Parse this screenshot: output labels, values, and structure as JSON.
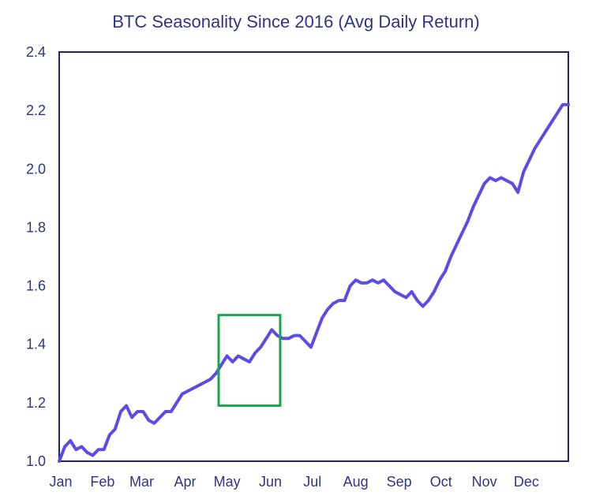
{
  "colors": {
    "line": "#5b4ce6",
    "text": "#2f3585",
    "axis": "#1f2460",
    "highlight": "#1aa64a"
  },
  "chart_data": {
    "type": "line",
    "title": "BTC Seasonality Since 2016 (Avg Daily Return)",
    "xlabel": "",
    "ylabel": "",
    "ylim": [
      1.0,
      2.4
    ],
    "yticks": [
      "1.0",
      "1.2",
      "1.4",
      "1.6",
      "1.8",
      "2.0",
      "2.2",
      "2.4"
    ],
    "xticks": [
      "Jan",
      "Feb",
      "Mar",
      "Apr",
      "May",
      "Jun",
      "Jul",
      "Aug",
      "Sep",
      "Oct",
      "Nov",
      "Dec"
    ],
    "grid": false,
    "legend": "none",
    "highlight": {
      "x_range": [
        "Apr 25",
        "Jun 8"
      ],
      "y_range": [
        1.19,
        1.5
      ]
    },
    "series": [
      {
        "x": [
          "Jan 1",
          "Jan 5",
          "Jan 9",
          "Jan 13",
          "Jan 17",
          "Jan 21",
          "Jan 25",
          "Jan 29",
          "Feb 2",
          "Feb 6",
          "Feb 10",
          "Feb 14",
          "Feb 18",
          "Feb 22",
          "Feb 26",
          "Mar 2",
          "Mar 6",
          "Mar 10",
          "Mar 14",
          "Mar 18",
          "Mar 22",
          "Mar 26",
          "Mar 30",
          "Apr 3",
          "Apr 7",
          "Apr 11",
          "Apr 15",
          "Apr 19",
          "Apr 23",
          "Apr 27",
          "May 1",
          "May 5",
          "May 9",
          "May 13",
          "May 17",
          "May 21",
          "May 25",
          "May 29",
          "Jun 2",
          "Jun 6",
          "Jun 10",
          "Jun 14",
          "Jun 18",
          "Jun 22",
          "Jun 26",
          "Jun 30",
          "Jul 4",
          "Jul 8",
          "Jul 12",
          "Jul 16",
          "Jul 20",
          "Jul 24",
          "Jul 28",
          "Aug 1",
          "Aug 5",
          "Aug 9",
          "Aug 13",
          "Aug 17",
          "Aug 21",
          "Aug 25",
          "Aug 29",
          "Sep 2",
          "Sep 6",
          "Sep 10",
          "Sep 14",
          "Sep 18",
          "Sep 22",
          "Sep 26",
          "Sep 30",
          "Oct 4",
          "Oct 8",
          "Oct 12",
          "Oct 16",
          "Oct 20",
          "Oct 24",
          "Oct 28",
          "Nov 1",
          "Nov 5",
          "Nov 9",
          "Nov 13",
          "Nov 17",
          "Nov 21",
          "Nov 25",
          "Nov 29",
          "Dec 3",
          "Dec 7",
          "Dec 11",
          "Dec 15",
          "Dec 19",
          "Dec 23",
          "Dec 27",
          "Dec 31"
        ],
        "values": [
          1.0,
          1.05,
          1.07,
          1.04,
          1.05,
          1.03,
          1.02,
          1.04,
          1.04,
          1.09,
          1.11,
          1.17,
          1.19,
          1.15,
          1.17,
          1.17,
          1.14,
          1.13,
          1.15,
          1.17,
          1.17,
          1.2,
          1.23,
          1.24,
          1.25,
          1.26,
          1.27,
          1.28,
          1.3,
          1.33,
          1.36,
          1.34,
          1.36,
          1.35,
          1.34,
          1.37,
          1.39,
          1.42,
          1.45,
          1.43,
          1.42,
          1.42,
          1.43,
          1.43,
          1.41,
          1.39,
          1.44,
          1.49,
          1.52,
          1.54,
          1.55,
          1.55,
          1.6,
          1.62,
          1.61,
          1.61,
          1.62,
          1.61,
          1.62,
          1.6,
          1.58,
          1.57,
          1.56,
          1.58,
          1.55,
          1.53,
          1.55,
          1.58,
          1.62,
          1.65,
          1.7,
          1.74,
          1.78,
          1.82,
          1.87,
          1.91,
          1.95,
          1.97,
          1.96,
          1.97,
          1.96,
          1.95,
          1.92,
          1.99,
          2.03,
          2.07,
          2.1,
          2.13,
          2.16,
          2.19,
          2.22,
          2.22
        ]
      }
    ]
  }
}
